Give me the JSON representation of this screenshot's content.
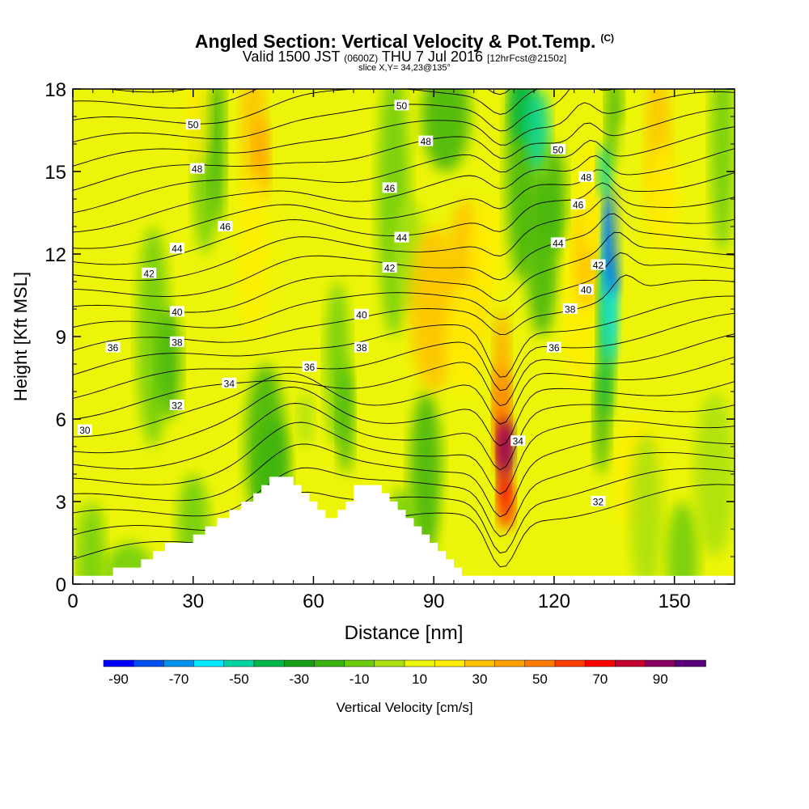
{
  "header": {
    "title": "Angled Section: Vertical Velocity & Pot.Temp.",
    "title_units": "(C)",
    "valid_prefix": "Valid 1500 JST",
    "valid_z": "(0600Z)",
    "valid_date": "THU 7 Jul 2016",
    "forecast": "[12hrFcst@2150z]",
    "slice": "slice X,Y= 34,23@135°"
  },
  "chart_data": {
    "type": "heatmap",
    "xlabel": "Distance [nm]",
    "ylabel": "Height [Kft MSL]",
    "xlim": [
      0,
      165
    ],
    "ylim": [
      0,
      18
    ],
    "x_ticks": [
      0,
      30,
      60,
      90,
      120,
      150
    ],
    "y_ticks": [
      0,
      3,
      6,
      9,
      12,
      15,
      18
    ],
    "field": "Vertical Velocity [cm/s]",
    "contour_field": "Potential temperature (C)",
    "colorbar": {
      "label": "Vertical Velocity [cm/s]",
      "tick_labels": [
        "-90",
        "-70",
        "-50",
        "-30",
        "-10",
        "10",
        "30",
        "50",
        "70",
        "90"
      ],
      "levels": [
        -90,
        -80,
        -70,
        -60,
        -50,
        -40,
        -30,
        -20,
        -10,
        0,
        10,
        20,
        30,
        40,
        50,
        60,
        70,
        80,
        90,
        100
      ],
      "colors": [
        "#0000ff",
        "#0050f0",
        "#0090f0",
        "#00e8ff",
        "#00d4a0",
        "#00b84a",
        "#18a018",
        "#3cb410",
        "#6ccc10",
        "#a8e010",
        "#ecf508",
        "#ffee00",
        "#ffc200",
        "#ffa200",
        "#ff7a00",
        "#ff3e00",
        "#ff0000",
        "#c40030",
        "#880060",
        "#5a007a"
      ]
    },
    "terrain_kft": [
      [
        0,
        0.3
      ],
      [
        10,
        0.3
      ],
      [
        10,
        0.6
      ],
      [
        17,
        0.6
      ],
      [
        17,
        0.9
      ],
      [
        20,
        0.9
      ],
      [
        20,
        1.2
      ],
      [
        23,
        1.2
      ],
      [
        23,
        1.5
      ],
      [
        30,
        1.5
      ],
      [
        30,
        1.8
      ],
      [
        33,
        1.8
      ],
      [
        33,
        2.1
      ],
      [
        36,
        2.1
      ],
      [
        36,
        2.4
      ],
      [
        39,
        2.4
      ],
      [
        39,
        2.7
      ],
      [
        42,
        2.7
      ],
      [
        42,
        3.0
      ],
      [
        45,
        3.0
      ],
      [
        45,
        3.3
      ],
      [
        47,
        3.3
      ],
      [
        47,
        3.6
      ],
      [
        49,
        3.6
      ],
      [
        49,
        3.9
      ],
      [
        55,
        3.9
      ],
      [
        55,
        3.6
      ],
      [
        57,
        3.6
      ],
      [
        57,
        3.3
      ],
      [
        59,
        3.3
      ],
      [
        59,
        3.0
      ],
      [
        61,
        3.0
      ],
      [
        61,
        2.7
      ],
      [
        63,
        2.7
      ],
      [
        63,
        2.4
      ],
      [
        66,
        2.4
      ],
      [
        66,
        2.7
      ],
      [
        68,
        2.7
      ],
      [
        68,
        3.0
      ],
      [
        70,
        3.0
      ],
      [
        70,
        3.6
      ],
      [
        77,
        3.6
      ],
      [
        77,
        3.3
      ],
      [
        79,
        3.3
      ],
      [
        79,
        3.0
      ],
      [
        81,
        3.0
      ],
      [
        81,
        2.7
      ],
      [
        83,
        2.7
      ],
      [
        83,
        2.4
      ],
      [
        85,
        2.4
      ],
      [
        85,
        2.1
      ],
      [
        87,
        2.1
      ],
      [
        87,
        1.8
      ],
      [
        89,
        1.8
      ],
      [
        89,
        1.5
      ],
      [
        91,
        1.5
      ],
      [
        91,
        1.2
      ],
      [
        93,
        1.2
      ],
      [
        93,
        0.9
      ],
      [
        95,
        0.9
      ],
      [
        95,
        0.6
      ],
      [
        97,
        0.6
      ],
      [
        97,
        0.3
      ],
      [
        165,
        0.3
      ]
    ],
    "contour_labels": [
      {
        "text": "30",
        "x": 3,
        "y": 5.6
      },
      {
        "text": "32",
        "x": 26,
        "y": 6.5
      },
      {
        "text": "32",
        "x": 131,
        "y": 3.0
      },
      {
        "text": "34",
        "x": 39,
        "y": 7.3
      },
      {
        "text": "34",
        "x": 111,
        "y": 5.2
      },
      {
        "text": "36",
        "x": 10,
        "y": 8.6
      },
      {
        "text": "36",
        "x": 59,
        "y": 7.9
      },
      {
        "text": "36",
        "x": 120,
        "y": 8.6
      },
      {
        "text": "38",
        "x": 26,
        "y": 8.8
      },
      {
        "text": "38",
        "x": 72,
        "y": 8.6
      },
      {
        "text": "38",
        "x": 124,
        "y": 10.0
      },
      {
        "text": "40",
        "x": 26,
        "y": 9.9
      },
      {
        "text": "40",
        "x": 72,
        "y": 9.8
      },
      {
        "text": "40",
        "x": 128,
        "y": 10.7
      },
      {
        "text": "42",
        "x": 19,
        "y": 11.3
      },
      {
        "text": "42",
        "x": 79,
        "y": 11.5
      },
      {
        "text": "42",
        "x": 131,
        "y": 11.6
      },
      {
        "text": "44",
        "x": 26,
        "y": 12.2
      },
      {
        "text": "44",
        "x": 82,
        "y": 12.6
      },
      {
        "text": "44",
        "x": 121,
        "y": 12.4
      },
      {
        "text": "46",
        "x": 38,
        "y": 13.0
      },
      {
        "text": "46",
        "x": 79,
        "y": 14.4
      },
      {
        "text": "46",
        "x": 126,
        "y": 13.8
      },
      {
        "text": "48",
        "x": 31,
        "y": 15.1
      },
      {
        "text": "48",
        "x": 88,
        "y": 16.1
      },
      {
        "text": "48",
        "x": 128,
        "y": 14.8
      },
      {
        "text": "50",
        "x": 30,
        "y": 16.7
      },
      {
        "text": "50",
        "x": 82,
        "y": 17.4
      },
      {
        "text": "50",
        "x": 121,
        "y": 15.8
      }
    ]
  }
}
